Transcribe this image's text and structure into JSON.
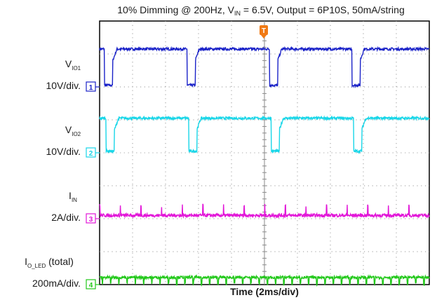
{
  "chart_data": {
    "type": "line",
    "title": {
      "prefix": "10% Dimming @ 200Hz, V",
      "prefix_sub": "IN",
      "suffix": " = 6.5V, Output = 6P10S, 50mA/string"
    },
    "xlabel": "Time (2ms/div)",
    "x_divisions": 10,
    "y_divisions": 8,
    "grid": true,
    "trigger_marker": "T",
    "trigger_icon": "trigger-t-icon",
    "series": [
      {
        "id": "vio1",
        "channel": "1",
        "label": "V",
        "sub": "IO1",
        "scale": "10V/div.",
        "color": "#1a22c8",
        "waveform": "square",
        "period_ms": 5,
        "off_ms": 0.5,
        "phase_ms": 5.3,
        "high_div": 7.15,
        "low_div": 6.05,
        "ref_div": 6.0
      },
      {
        "id": "vio2",
        "channel": "2",
        "label": "V",
        "sub": "IO2",
        "scale": "10V/div.",
        "color": "#18d6e8",
        "waveform": "square",
        "period_ms": 5,
        "off_ms": 0.5,
        "phase_ms": 0.4,
        "high_div": 5.05,
        "low_div": 4.05,
        "ref_div": 4.0
      },
      {
        "id": "iin",
        "channel": "3",
        "label": "I",
        "sub": "IN",
        "scale": "2A/div.",
        "color": "#e216d8",
        "waveform": "pulse",
        "period_ms": 1.25,
        "base_div": 2.1,
        "spike_div": 0.3,
        "ref_div": 2.0
      },
      {
        "id": "iled",
        "channel": "4",
        "label": "I",
        "sub": "O_LED",
        "label_suffix": " (total)",
        "scale": "200mA/div.",
        "color": "#22c81a",
        "waveform": "square",
        "period_ms": 0.5,
        "off_ms": 0.05,
        "phase_ms": 0.15,
        "high_div": 0.22,
        "low_div": 0.02,
        "ref_div": 0.0
      }
    ]
  }
}
